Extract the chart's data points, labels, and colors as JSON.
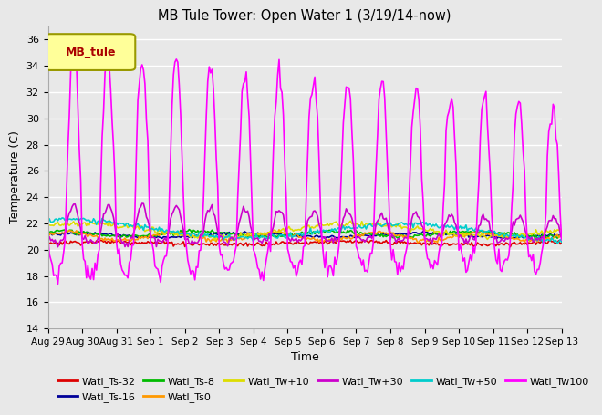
{
  "title": "MB Tule Tower: Open Water 1 (3/19/14-now)",
  "xlabel": "Time",
  "ylabel": "Temperature (C)",
  "ylim": [
    14,
    37
  ],
  "yticks": [
    14,
    16,
    18,
    20,
    22,
    24,
    26,
    28,
    30,
    32,
    34,
    36
  ],
  "legend_box_label": "MB_tule",
  "series_names": [
    "Watl_Ts-32",
    "Watl_Ts-16",
    "Watl_Ts-8",
    "Watl_Ts0",
    "Watl_Tw+10",
    "Watl_Tw+30",
    "Watl_Tw+50",
    "Watl_Tw100"
  ],
  "series_colors": [
    "#dd0000",
    "#000099",
    "#00bb00",
    "#ff9900",
    "#dddd00",
    "#cc00cc",
    "#00cccc",
    "#ff00ff"
  ],
  "xtick_labels": [
    "Aug 29",
    "Aug 30",
    "Aug 31",
    "Sep 1",
    "Sep 2",
    "Sep 3",
    "Sep 4",
    "Sep 5",
    "Sep 6",
    "Sep 7",
    "Sep 8",
    "Sep 9",
    "Sep 10",
    "Sep 11",
    "Sep 12",
    "Sep 13"
  ],
  "background_color": "#e8e8e8",
  "grid_color": "#ffffff",
  "legend_ncol_row1": 6,
  "legend_ncol_row2": 2
}
